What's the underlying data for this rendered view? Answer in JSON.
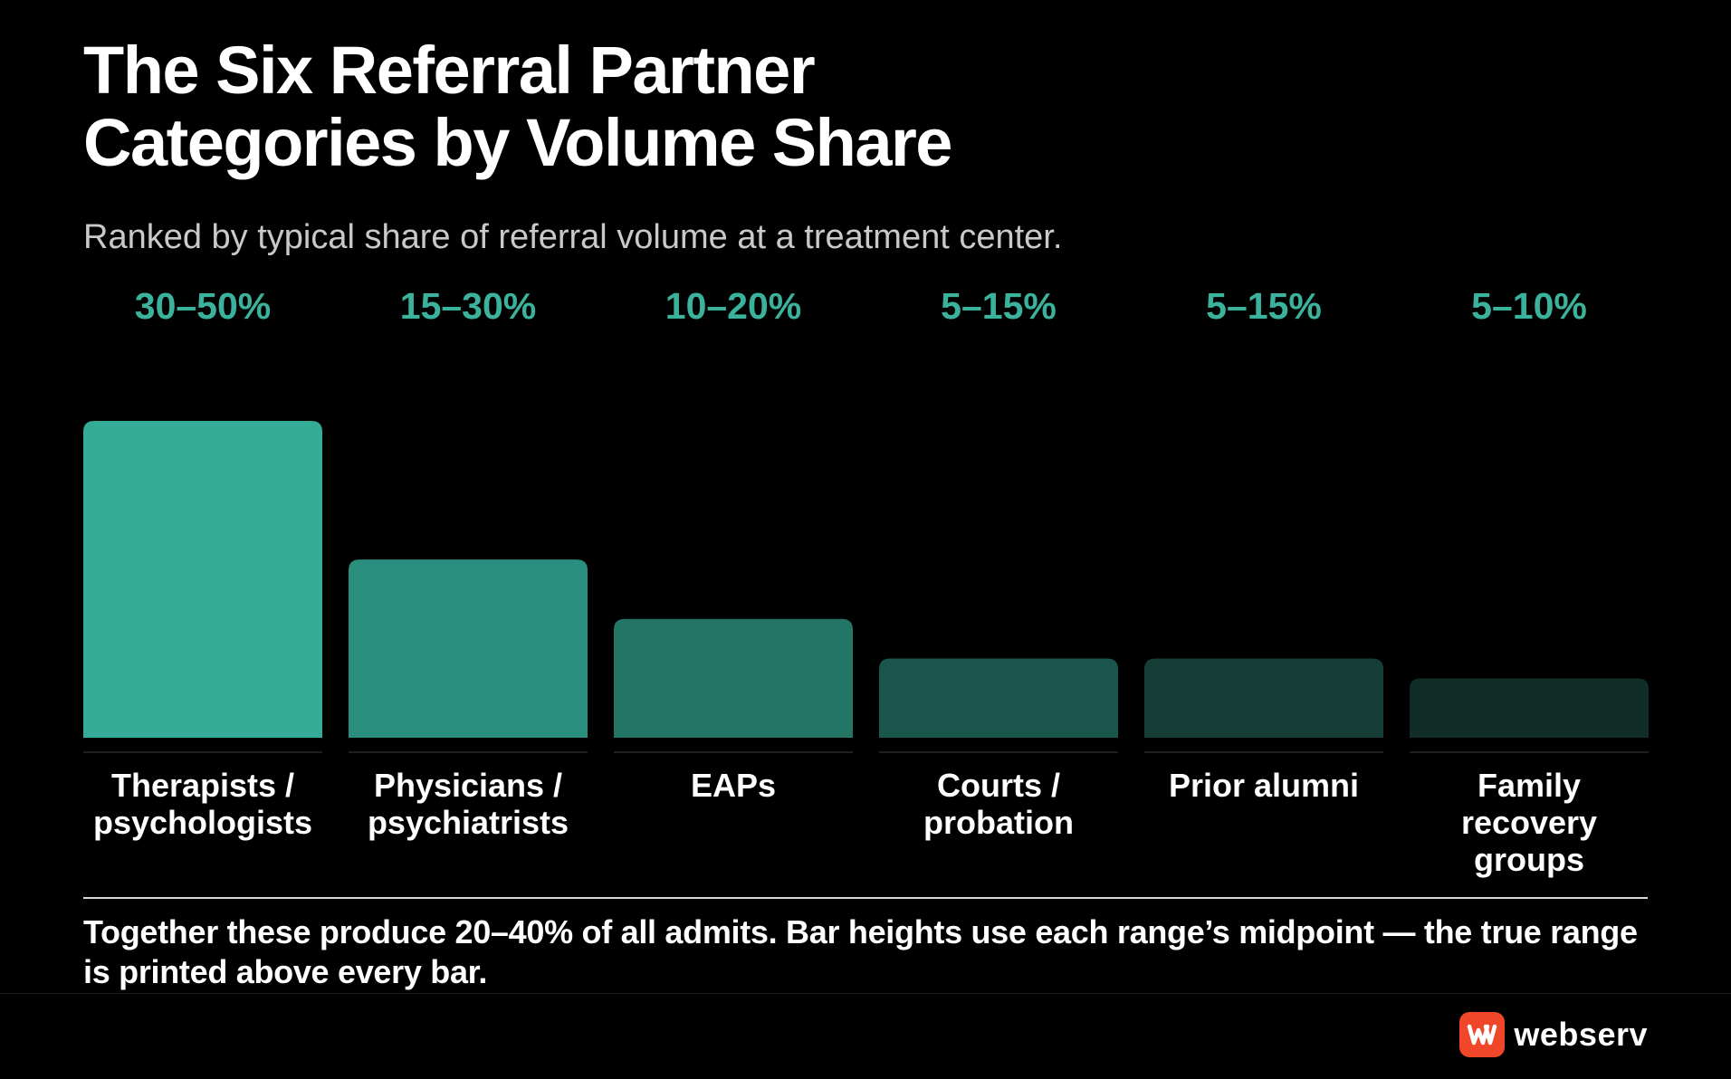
{
  "header": {
    "title_line1": "The Six Referral Partner",
    "title_line2": "Categories by Volume Share",
    "subtitle": "Ranked by typical share of referral volume at a treatment center."
  },
  "chart_data": {
    "type": "bar",
    "title": "The Six Referral Partner Categories by Volume Share",
    "subtitle": "Ranked by typical share of referral volume at a treatment center.",
    "categories": [
      [
        "Therapists /",
        "psychologists"
      ],
      [
        "Physicians /",
        "psychiatrists"
      ],
      [
        "EAPs"
      ],
      [
        "Courts /",
        "probation"
      ],
      [
        "Prior alumni"
      ],
      [
        "Family",
        "recovery",
        "groups"
      ]
    ],
    "range_labels": [
      "30–50%",
      "15–30%",
      "10–20%",
      "5–15%",
      "5–15%",
      "5–10%"
    ],
    "values": [
      40,
      22.5,
      15,
      10,
      10,
      7.5
    ],
    "ylim": [
      0,
      40
    ],
    "unit": "%",
    "grid": false,
    "legend": "none",
    "bar_colors": [
      "#35ac98",
      "#2a8e7e",
      "#237566",
      "#1b564c",
      "#163d36",
      "#112d28"
    ],
    "label_color": "#3bb39c"
  },
  "footnote": "Together these produce 20–40% of all admits. Bar heights use each range’s midpoint — the true range is printed above every bar.",
  "brand": {
    "name": "webserv",
    "icon": "webserv-logo-icon",
    "color": "#f0462a"
  }
}
